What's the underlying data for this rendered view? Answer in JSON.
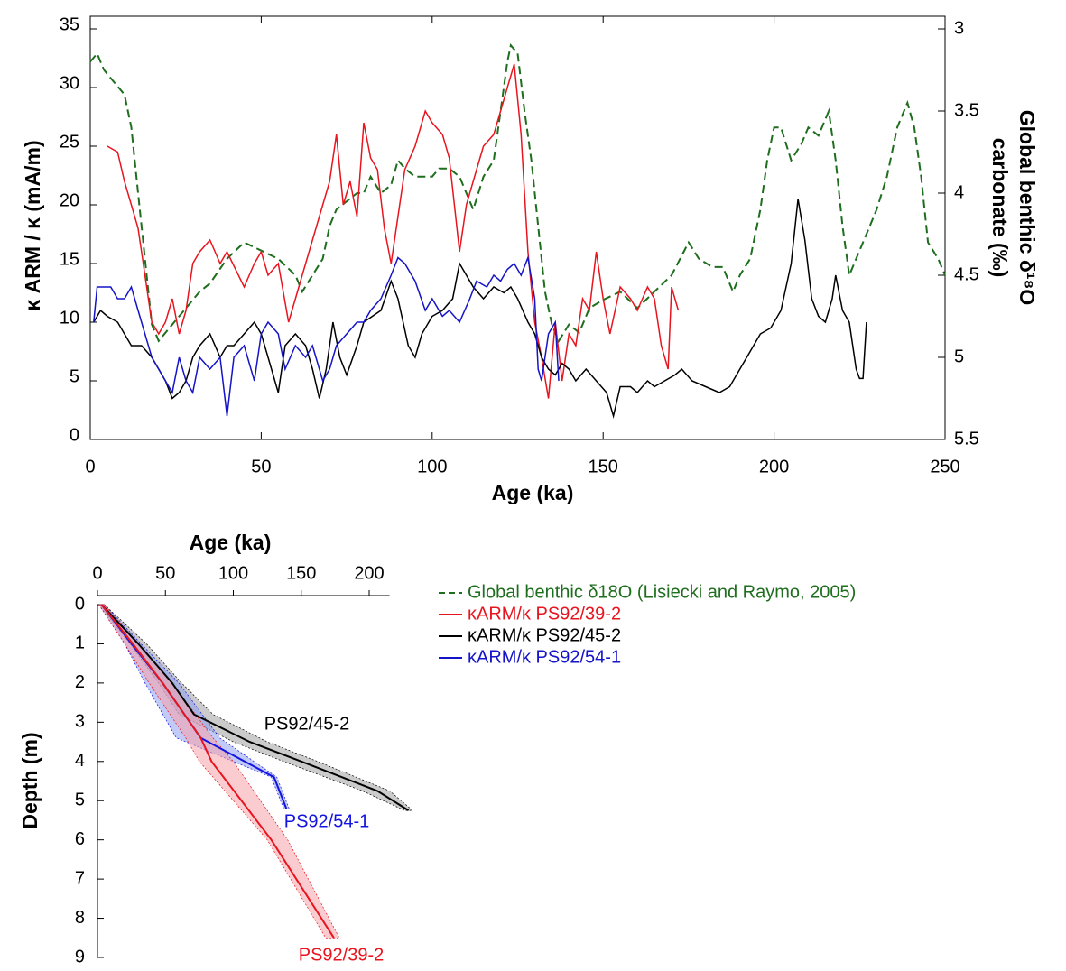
{
  "chart_data": [
    {
      "type": "line",
      "xlabel": "Age (ka)",
      "ylabel": "κ ARM / κ (mA/m)",
      "y2label": [
        "Global benthic δ¹⁸O",
        "carbonate (‰)"
      ],
      "xlim": [
        0,
        250
      ],
      "xticks": [
        0,
        50,
        100,
        150,
        200,
        250
      ],
      "ylim": [
        0,
        35
      ],
      "yticks": [
        0,
        5,
        10,
        15,
        20,
        25,
        30,
        35
      ],
      "y2lim": [
        3,
        5.5
      ],
      "y2ticks": [
        3,
        3.5,
        4,
        4.5,
        5,
        5.5
      ],
      "y2_inverted": true,
      "legend": "below",
      "series": [
        {
          "name": "Global benthic δ18O (Lisiecki and Raymo, 2005)",
          "color": "#1e6e1e",
          "dashed": true,
          "axis": "y2",
          "x": [
            0,
            2,
            4,
            6,
            8,
            10,
            12,
            14,
            16,
            18,
            20,
            22,
            24,
            26,
            28,
            30,
            32,
            35,
            40,
            45,
            50,
            55,
            60,
            62,
            65,
            68,
            70,
            72,
            75,
            78,
            80,
            82,
            85,
            88,
            90,
            92,
            95,
            98,
            100,
            102,
            105,
            108,
            110,
            112,
            115,
            118,
            120,
            122,
            123,
            125,
            127,
            129,
            131,
            133,
            135,
            137,
            140,
            143,
            146,
            150,
            155,
            160,
            165,
            170,
            175,
            178,
            182,
            185,
            188,
            190,
            193,
            196,
            198,
            200,
            202,
            205,
            208,
            210,
            213,
            216,
            218,
            220,
            222,
            224,
            226,
            228,
            230,
            233,
            236,
            239,
            241,
            243,
            245,
            248,
            250
          ],
          "values": [
            3.2,
            3.15,
            3.25,
            3.3,
            3.35,
            3.4,
            3.6,
            4.0,
            4.4,
            4.8,
            4.9,
            4.85,
            4.8,
            4.75,
            4.7,
            4.65,
            4.6,
            4.55,
            4.4,
            4.3,
            4.35,
            4.4,
            4.5,
            4.6,
            4.5,
            4.4,
            4.2,
            4.1,
            4.05,
            4.0,
            4.0,
            3.9,
            4.0,
            3.95,
            3.8,
            3.85,
            3.9,
            3.9,
            3.9,
            3.85,
            3.85,
            3.9,
            4.0,
            4.1,
            3.9,
            3.8,
            3.5,
            3.2,
            3.1,
            3.15,
            3.5,
            3.8,
            4.2,
            4.6,
            4.8,
            4.9,
            4.8,
            4.85,
            4.7,
            4.65,
            4.6,
            4.7,
            4.6,
            4.5,
            4.3,
            4.4,
            4.45,
            4.45,
            4.6,
            4.5,
            4.4,
            4.1,
            3.8,
            3.6,
            3.6,
            3.8,
            3.7,
            3.6,
            3.65,
            3.5,
            3.8,
            4.2,
            4.5,
            4.4,
            4.3,
            4.2,
            4.1,
            3.9,
            3.6,
            3.45,
            3.6,
            3.9,
            4.3,
            4.4,
            4.5
          ]
        },
        {
          "name": "κARM/κ PS92/39-2",
          "color": "#e8141e",
          "x": [
            5,
            8,
            10,
            12,
            14,
            16,
            18,
            20,
            22,
            24,
            26,
            28,
            30,
            32,
            35,
            38,
            40,
            45,
            48,
            50,
            52,
            55,
            58,
            60,
            63,
            65,
            68,
            70,
            72,
            74,
            76,
            78,
            80,
            82,
            84,
            86,
            88,
            90,
            92,
            95,
            98,
            100,
            103,
            105,
            108,
            110,
            113,
            115,
            118,
            120,
            122,
            124,
            126,
            128,
            130,
            132,
            134,
            136,
            138,
            140,
            142,
            144,
            146,
            148,
            150,
            152,
            155,
            158,
            160,
            163,
            165,
            167,
            169,
            170,
            172
          ],
          "values": [
            25,
            24.5,
            22,
            20,
            18,
            14,
            10,
            9,
            10,
            12,
            9,
            11,
            15,
            16,
            17,
            15,
            16,
            13,
            15,
            16,
            14,
            15,
            10,
            12,
            15,
            17,
            20,
            22,
            26,
            20,
            22,
            19,
            27,
            24,
            23,
            18,
            15,
            19,
            23,
            25,
            28,
            27,
            26,
            24,
            16,
            20,
            23,
            25,
            26,
            28,
            30,
            32,
            26,
            16,
            10,
            7,
            3.5,
            10,
            5,
            9,
            8,
            12,
            11,
            16,
            12,
            9,
            13,
            12,
            11,
            13,
            12,
            8,
            6,
            13,
            11
          ]
        },
        {
          "name": "κARM/κ PS92/45-2",
          "color": "#000000",
          "x": [
            1,
            3,
            5,
            8,
            10,
            12,
            15,
            18,
            20,
            22,
            24,
            26,
            28,
            30,
            32,
            35,
            38,
            40,
            42,
            45,
            48,
            50,
            52,
            55,
            57,
            60,
            63,
            65,
            67,
            69,
            71,
            73,
            75,
            78,
            80,
            85,
            88,
            90,
            93,
            95,
            97,
            100,
            103,
            106,
            108,
            110,
            112,
            115,
            118,
            121,
            123,
            125,
            128,
            130,
            132,
            134,
            136,
            138,
            140,
            142,
            145,
            148,
            151,
            153,
            155,
            158,
            160,
            163,
            165,
            168,
            171,
            173,
            176,
            180,
            184,
            187,
            190,
            193,
            196,
            199,
            202,
            205,
            207,
            209,
            211,
            213,
            215,
            217,
            218,
            220,
            222,
            224,
            225,
            226,
            227
          ],
          "values": [
            10,
            11,
            10.5,
            10,
            9,
            8,
            8,
            7,
            6,
            5,
            3.5,
            4,
            5,
            7,
            8,
            9,
            7,
            8,
            8,
            9,
            10,
            9,
            7,
            4,
            8,
            9,
            8,
            6,
            3.5,
            6,
            10,
            7,
            5.5,
            8,
            10,
            11,
            13.5,
            12,
            8,
            7,
            9,
            10.5,
            11,
            12,
            15,
            14,
            13,
            12,
            13,
            12.5,
            13,
            12,
            10,
            9,
            7,
            6,
            5.5,
            6.5,
            6,
            5,
            6,
            5,
            4,
            2,
            4.5,
            4.5,
            4,
            5,
            4.5,
            5,
            5.5,
            6,
            5,
            4.5,
            4,
            4.5,
            6,
            7.5,
            9,
            9.5,
            11,
            15,
            20.5,
            17,
            12,
            10.5,
            10,
            12,
            14,
            11,
            10,
            6,
            5.2,
            5.2,
            10
          ]
        },
        {
          "name": "κARM/κ PS92/54-1",
          "color": "#1414c8",
          "x": [
            1,
            2,
            4,
            6,
            8,
            10,
            12,
            14,
            16,
            18,
            20,
            22,
            24,
            26,
            28,
            30,
            32,
            35,
            38,
            40,
            42,
            45,
            48,
            50,
            52,
            55,
            57,
            60,
            63,
            65,
            68,
            70,
            72,
            75,
            78,
            80,
            82,
            85,
            88,
            90,
            92,
            95,
            98,
            100,
            103,
            105,
            108,
            111,
            113,
            116,
            118,
            120,
            122,
            124,
            126,
            128,
            130,
            131,
            132,
            134,
            136,
            137
          ],
          "values": [
            10,
            13,
            13,
            13,
            12,
            12,
            13,
            11,
            9,
            7,
            6,
            5,
            4,
            7,
            5,
            4,
            7,
            6,
            7,
            2,
            7,
            8,
            5,
            9,
            10,
            9,
            6,
            8,
            7,
            8,
            5,
            6,
            8,
            9,
            10,
            10,
            11,
            12,
            14,
            15.5,
            15,
            13.5,
            11,
            12,
            10.5,
            11,
            10,
            12,
            13.5,
            13,
            14,
            13.5,
            14.5,
            15,
            14,
            15.5,
            12,
            6,
            5,
            9,
            10,
            5
          ]
        }
      ]
    },
    {
      "type": "age-depth",
      "xlabel": "Age (ka)",
      "ylabel": "Depth (m)",
      "xlim": [
        0,
        215
      ],
      "xticks": [
        0,
        50,
        100,
        150,
        200
      ],
      "ylim": [
        0,
        9
      ],
      "yticks": [
        0,
        1,
        2,
        3,
        4,
        5,
        6,
        7,
        8,
        9
      ],
      "y_inverted": true,
      "series": [
        {
          "name": "PS92/45-2",
          "color": "#000000",
          "band_color": "#a0a0a0",
          "depth": [
            0,
            1,
            2,
            2.8,
            3.5,
            4,
            4.75,
            5.25
          ],
          "age": [
            3,
            30,
            55,
            71,
            112,
            150,
            206,
            229
          ],
          "age_min": [
            1,
            24,
            45,
            60,
            100,
            137,
            195,
            226
          ],
          "age_max": [
            5,
            36,
            62,
            85,
            125,
            162,
            215,
            232
          ]
        },
        {
          "name": "PS92/54-1",
          "color": "#1414e0",
          "band_color": "#8fa0f0",
          "depth": [
            0,
            1,
            2,
            3.4,
            4.4,
            5.2
          ],
          "age": [
            3,
            25,
            48,
            76,
            130,
            139
          ],
          "age_min": [
            1,
            20,
            35,
            58,
            128,
            137
          ],
          "age_max": [
            5,
            32,
            60,
            90,
            132,
            141
          ]
        },
        {
          "name": "PS92/39-2",
          "color": "#e8141e",
          "band_color": "#f5a0a8",
          "depth": [
            0,
            1,
            2,
            3.4,
            4,
            6,
            8.5
          ],
          "age": [
            3,
            26,
            48,
            76,
            84,
            128,
            174
          ],
          "age_min": [
            1,
            20,
            38,
            65,
            75,
            125,
            168
          ],
          "age_max": [
            5,
            30,
            55,
            85,
            100,
            140,
            178
          ]
        }
      ]
    }
  ]
}
